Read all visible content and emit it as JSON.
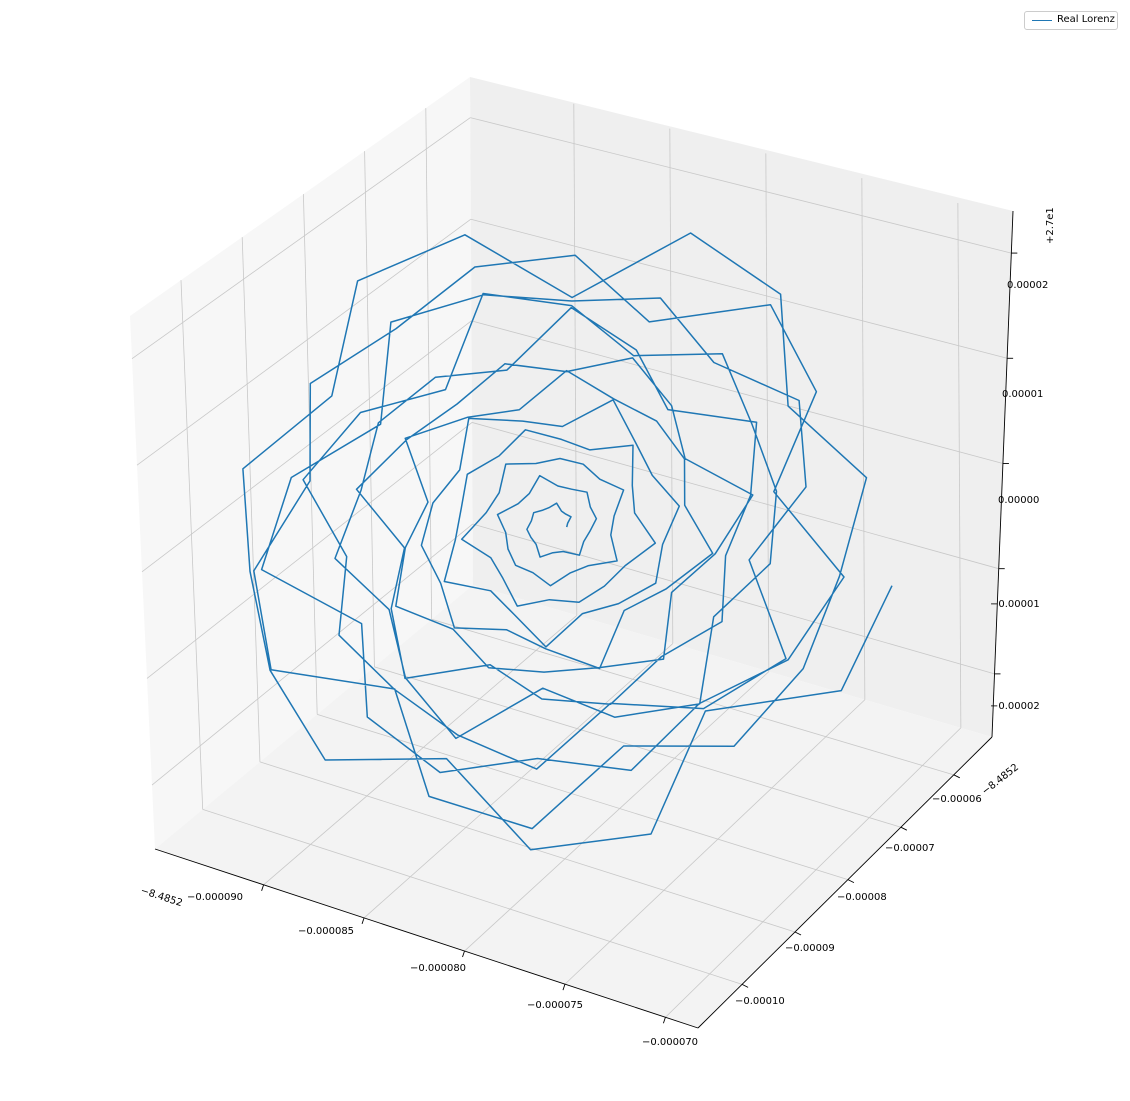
{
  "chart_data": {
    "type": "line",
    "projection": "3d",
    "title": "",
    "grid": true,
    "legend_placement": "top-right",
    "colors": {
      "series": "#1f77b4",
      "pane_left": "#f7f7f7",
      "pane_right": "#efefef",
      "pane_floor": "#f3f3f3",
      "grid": "#c8c8c8"
    },
    "x_axis": {
      "offset_label": "−8.4852",
      "ticks": [
        "−0.000090",
        "−0.000085",
        "−0.000080",
        "−0.000075",
        "−0.000070"
      ],
      "range": [
        -9.15e-05,
        -6.95e-05
      ]
    },
    "y_axis": {
      "offset_label": "−8.4852",
      "ticks": [
        "−0.00010",
        "−0.00009",
        "−0.00008",
        "−0.00007",
        "−0.00006"
      ],
      "range": [
        -0.000105,
        -5.5e-05
      ]
    },
    "z_axis": {
      "offset_label": "+2.7e1",
      "ticks": [
        "−0.00002",
        "−0.00001",
        "0.00000",
        "0.00001",
        "0.00002"
      ],
      "range": [
        -2.5e-05,
        2.5e-05
      ]
    },
    "series": [
      {
        "name": "Real Lorenz",
        "description": "tight spiral trajectory converging to a fixed point",
        "turns": 12
      }
    ]
  }
}
